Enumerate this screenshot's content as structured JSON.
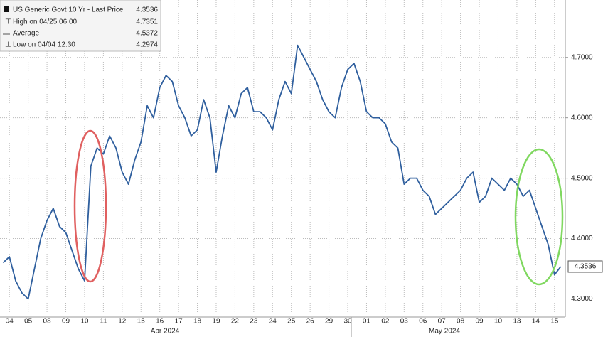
{
  "chart_data": {
    "type": "line",
    "legend": [
      {
        "label": "US Generic Govt 10 Yr - Last Price",
        "value": 4.3536
      },
      {
        "label": "High on 04/25 06:00",
        "value": 4.7351
      },
      {
        "label": "Average",
        "value": 4.5372
      },
      {
        "label": "Low on 04/04 12:30",
        "value": 4.2974
      }
    ],
    "categories": [
      null,
      "04",
      null,
      null,
      "05",
      null,
      null,
      "08",
      null,
      null,
      "09",
      null,
      null,
      "10",
      null,
      null,
      "11",
      null,
      null,
      "12",
      null,
      null,
      "15",
      null,
      null,
      "16",
      null,
      null,
      "17",
      null,
      null,
      "18",
      null,
      null,
      "19",
      null,
      null,
      "22",
      null,
      null,
      "23",
      null,
      null,
      "24",
      null,
      null,
      "25",
      null,
      null,
      "26",
      null,
      null,
      "29",
      null,
      null,
      "30",
      null,
      null,
      "01",
      null,
      null,
      "02",
      null,
      null,
      "03",
      null,
      null,
      "06",
      null,
      null,
      "07",
      null,
      null,
      "08",
      null,
      null,
      "09",
      null,
      null,
      "10",
      null,
      null,
      "13",
      null,
      null,
      "14",
      null,
      null,
      "15",
      null
    ],
    "group_labels": [
      "Apr 2024",
      "May 2024"
    ],
    "series": [
      {
        "name": "US Generic Govt 10 Yr - Last Price",
        "color": "#2f5f9e",
        "values": [
          4.36,
          4.37,
          4.33,
          4.31,
          4.3,
          4.35,
          4.4,
          4.43,
          4.45,
          4.42,
          4.41,
          4.38,
          4.35,
          4.33,
          4.52,
          4.55,
          4.54,
          4.57,
          4.55,
          4.51,
          4.49,
          4.53,
          4.56,
          4.62,
          4.6,
          4.65,
          4.67,
          4.66,
          4.62,
          4.6,
          4.57,
          4.58,
          4.63,
          4.6,
          4.51,
          4.57,
          4.62,
          4.6,
          4.64,
          4.65,
          4.61,
          4.61,
          4.6,
          4.58,
          4.63,
          4.66,
          4.64,
          4.72,
          4.7,
          4.68,
          4.66,
          4.63,
          4.61,
          4.6,
          4.65,
          4.68,
          4.69,
          4.66,
          4.61,
          4.6,
          4.6,
          4.59,
          4.56,
          4.55,
          4.49,
          4.5,
          4.5,
          4.48,
          4.47,
          4.44,
          4.45,
          4.46,
          4.47,
          4.48,
          4.5,
          4.51,
          4.46,
          4.47,
          4.5,
          4.49,
          4.48,
          4.5,
          4.49,
          4.47,
          4.48,
          4.45,
          4.42,
          4.39,
          4.34,
          4.3536
        ]
      }
    ],
    "ylim": [
      4.27,
      4.795
    ],
    "yticks": [
      {
        "value": 4.3,
        "label": "4.3000"
      },
      {
        "value": 4.4,
        "label": "4.4000"
      },
      {
        "value": 4.5,
        "label": "4.5000"
      },
      {
        "value": 4.6,
        "label": "4.6000"
      },
      {
        "value": 4.7,
        "label": "4.7000"
      }
    ],
    "grid": true
  }
}
